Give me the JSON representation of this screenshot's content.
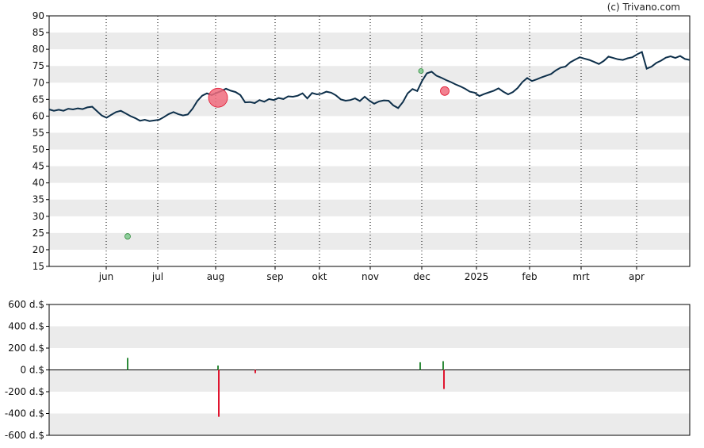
{
  "copyright": "(c) Trivano.com",
  "colors": {
    "price_line": "#0d2f4a",
    "band": "#ebebeb",
    "buy": "#2e8b3a",
    "sell": "#e0152f",
    "sell_marker": "#f06b7c",
    "buy_marker": "#7fc98e"
  },
  "chart_data": [
    {
      "type": "line",
      "ylim": [
        15,
        90
      ],
      "y_ticks": [
        "15",
        "20",
        "25",
        "30",
        "35",
        "40",
        "45",
        "50",
        "55",
        "60",
        "65",
        "70",
        "75",
        "80",
        "85",
        "90"
      ],
      "x_tick_labels": [
        "jun",
        "jul",
        "aug",
        "sep",
        "okt",
        "nov",
        "dec",
        "2025",
        "feb",
        "mrt",
        "apr"
      ],
      "grid": "alternating horizontal bands, dotted vertical lines at month boundaries",
      "series": [
        {
          "values": [
            62.0,
            61.6,
            61.9,
            61.6,
            62.2,
            62.0,
            62.3,
            62.1,
            62.6,
            62.8,
            61.5,
            60.2,
            59.5,
            60.4,
            61.2,
            61.6,
            60.8,
            60.0,
            59.4,
            58.6,
            58.9,
            58.5,
            58.7,
            58.9,
            59.7,
            60.6,
            61.2,
            60.6,
            60.2,
            60.5,
            62.2,
            64.5,
            66.1,
            66.8,
            66.3,
            66.9,
            67.5,
            68.2,
            67.6,
            67.2,
            66.3,
            64.1,
            64.2,
            63.9,
            64.8,
            64.3,
            65.1,
            64.8,
            65.4,
            65.1,
            65.9,
            65.8,
            66.1,
            66.8,
            65.3,
            66.9,
            66.5,
            66.7,
            67.3,
            67.0,
            66.2,
            65.0,
            64.6,
            64.8,
            65.3,
            64.5,
            65.8,
            64.6,
            63.7,
            64.4,
            64.7,
            64.6,
            63.2,
            62.4,
            64.2,
            66.8,
            68.1,
            67.5,
            70.5,
            72.8,
            73.3,
            72.1,
            71.5,
            70.8,
            70.2,
            69.5,
            68.9,
            68.2,
            67.3,
            67.0,
            66.0,
            66.6,
            67.1,
            67.6,
            68.3,
            67.3,
            66.5,
            67.2,
            68.4,
            70.2,
            71.4,
            70.5,
            71.0,
            71.6,
            72.1,
            72.6,
            73.7,
            74.5,
            74.8,
            76.1,
            76.9,
            77.6,
            77.2,
            76.8,
            76.2,
            75.6,
            76.5,
            77.8,
            77.4,
            77.0,
            76.8,
            77.3,
            77.6,
            78.5,
            79.2,
            74.2,
            74.8,
            75.9,
            76.6,
            77.5,
            77.9,
            77.4,
            78.0,
            77.1,
            76.8
          ],
          "x_range_note": "daily closes from late May 2024 to late April 2025"
        }
      ],
      "markers": [
        {
          "type": "buy",
          "date": "jun",
          "value": 24,
          "size": "small"
        },
        {
          "type": "sell",
          "date": "aug",
          "value": 65.5,
          "size": "large"
        },
        {
          "type": "buy",
          "date": "dec",
          "value": 73.5,
          "size": "small"
        },
        {
          "type": "sell",
          "date": "dec",
          "value": 67.5,
          "size": "medium"
        }
      ]
    },
    {
      "type": "bar",
      "ylim": [
        -600,
        600
      ],
      "y_ticks": [
        "600 d.$",
        "400 d.$",
        "200 d.$",
        "0 d.$",
        "-200 d.$",
        "-400 d.$",
        "-600 d.$"
      ],
      "series": [
        {
          "bars": [
            {
              "month": "jun",
              "value": 110,
              "kind": "buy"
            },
            {
              "month": "aug",
              "value": 40,
              "kind": "buy"
            },
            {
              "month": "aug",
              "value": -430,
              "kind": "sell"
            },
            {
              "month": "aug",
              "value": -30,
              "kind": "sell"
            },
            {
              "month": "dec",
              "value": 70,
              "kind": "buy"
            },
            {
              "month": "dec",
              "value": 80,
              "kind": "buy"
            },
            {
              "month": "dec",
              "value": -175,
              "kind": "sell"
            }
          ]
        }
      ]
    }
  ]
}
